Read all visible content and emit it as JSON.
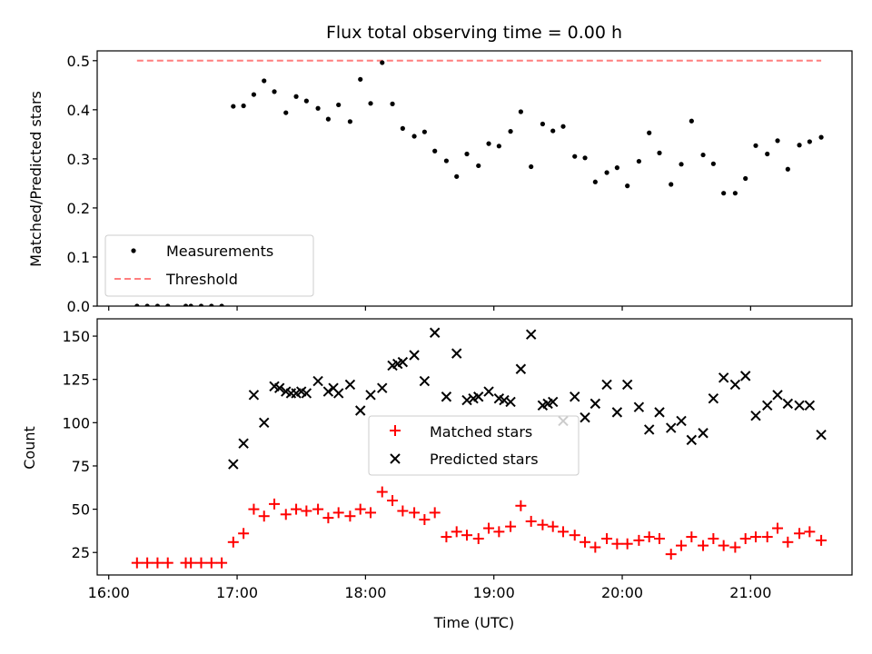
{
  "chart_data": [
    {
      "type": "scatter",
      "title": "Flux total observing time = 0.00 h",
      "ylabel": "Matched/Predicted stars",
      "xlabel": "",
      "ylim": [
        0,
        0.52
      ],
      "yticks": [
        0.0,
        0.1,
        0.2,
        0.3,
        0.4,
        0.5
      ],
      "ytick_labels": [
        "0.0",
        "0.1",
        "0.2",
        "0.3",
        "0.4",
        "0.5"
      ],
      "xlim": [
        15.91,
        21.79
      ],
      "xticks": [
        16,
        17,
        18,
        19,
        20,
        21
      ],
      "legend": {
        "placement": "lower-left",
        "entries": [
          "Measurements",
          "Threshold"
        ]
      },
      "colors": {
        "measurements": "#000000",
        "threshold": "#ff7f7f"
      },
      "threshold": {
        "name": "Threshold",
        "x": [
          16.22,
          21.55
        ],
        "y": 0.5
      },
      "series": [
        {
          "name": "Measurements",
          "x": [
            16.22,
            16.3,
            16.38,
            16.46,
            16.6,
            16.64,
            16.72,
            16.8,
            16.88,
            16.97,
            17.05,
            17.13,
            17.21,
            17.29,
            17.38,
            17.46,
            17.54,
            17.63,
            17.71,
            17.79,
            17.88,
            17.96,
            18.04,
            18.13,
            18.21,
            18.29,
            18.38,
            18.46,
            18.54,
            18.63,
            18.71,
            18.79,
            18.88,
            18.96,
            19.04,
            19.13,
            19.21,
            19.29,
            19.38,
            19.46,
            19.54,
            19.63,
            19.71,
            19.79,
            19.88,
            19.96,
            20.04,
            20.13,
            20.21,
            20.29,
            20.38,
            20.46,
            20.54,
            20.63,
            20.71,
            20.79,
            20.88,
            20.96,
            21.04,
            21.13,
            21.21,
            21.29,
            21.38,
            21.46,
            21.55
          ],
          "y": [
            0.0,
            0.0,
            0.0,
            0.0,
            0.0,
            0.0,
            0.0,
            0.0,
            0.0,
            0.407,
            0.408,
            0.431,
            0.459,
            0.437,
            0.394,
            0.427,
            0.418,
            0.403,
            0.381,
            0.41,
            0.376,
            0.462,
            0.413,
            0.496,
            0.412,
            0.362,
            0.346,
            0.355,
            0.316,
            0.296,
            0.264,
            0.31,
            0.286,
            0.331,
            0.326,
            0.356,
            0.396,
            0.284,
            0.371,
            0.357,
            0.366,
            0.305,
            0.302,
            0.253,
            0.272,
            0.282,
            0.245,
            0.295,
            0.353,
            0.312,
            0.248,
            0.289,
            0.377,
            0.308,
            0.29,
            0.23,
            0.23,
            0.26,
            0.327,
            0.31,
            0.337,
            0.279,
            0.328,
            0.335,
            0.344
          ]
        }
      ]
    },
    {
      "type": "scatter",
      "title": "",
      "xlabel": "Time (UTC)",
      "ylabel": "Count",
      "ylim": [
        12,
        160
      ],
      "yticks": [
        25,
        50,
        75,
        100,
        125,
        150
      ],
      "ytick_labels": [
        "25",
        "50",
        "75",
        "100",
        "125",
        "150"
      ],
      "xlim": [
        15.91,
        21.79
      ],
      "xticks": [
        16,
        17,
        18,
        19,
        20,
        21
      ],
      "xtick_labels": [
        "16:00",
        "17:00",
        "18:00",
        "19:00",
        "20:00",
        "21:00"
      ],
      "legend": {
        "placement": "center",
        "entries": [
          "Matched stars",
          "Predicted stars"
        ]
      },
      "colors": {
        "matched": "#ff0000",
        "predicted": "#000000"
      },
      "series": [
        {
          "name": "Matched stars",
          "marker": "plus",
          "x": [
            16.22,
            16.3,
            16.38,
            16.46,
            16.6,
            16.64,
            16.72,
            16.8,
            16.88,
            16.97,
            17.05,
            17.13,
            17.21,
            17.29,
            17.38,
            17.46,
            17.54,
            17.63,
            17.71,
            17.79,
            17.88,
            17.96,
            18.04,
            18.13,
            18.21,
            18.29,
            18.38,
            18.46,
            18.54,
            18.63,
            18.71,
            18.79,
            18.88,
            18.96,
            19.04,
            19.13,
            19.21,
            19.29,
            19.38,
            19.46,
            19.54,
            19.63,
            19.71,
            19.79,
            19.88,
            19.96,
            20.04,
            20.13,
            20.21,
            20.29,
            20.38,
            20.46,
            20.54,
            20.63,
            20.71,
            20.79,
            20.88,
            20.96,
            21.04,
            21.13,
            21.21,
            21.29,
            21.38,
            21.46,
            21.55
          ],
          "y": [
            19,
            19,
            19,
            19,
            19,
            19,
            19,
            19,
            19,
            31,
            36,
            50,
            46,
            53,
            47,
            50,
            49,
            50,
            45,
            48,
            46,
            50,
            48,
            60,
            55,
            49,
            48,
            44,
            48,
            34,
            37,
            35,
            33,
            39,
            37,
            40,
            52,
            43,
            41,
            40,
            37,
            35,
            31,
            28,
            33,
            30,
            30,
            32,
            34,
            33,
            24,
            29,
            34,
            29,
            33,
            29,
            28,
            33,
            34,
            34,
            39,
            31,
            36,
            37,
            32
          ]
        },
        {
          "name": "Predicted stars",
          "marker": "x",
          "x": [
            16.97,
            17.05,
            17.13,
            17.21,
            17.29,
            17.33,
            17.38,
            17.42,
            17.46,
            17.5,
            17.54,
            17.63,
            17.71,
            17.75,
            17.79,
            17.88,
            17.96,
            18.04,
            18.13,
            18.21,
            18.25,
            18.29,
            18.38,
            18.46,
            18.54,
            18.63,
            18.71,
            18.79,
            18.84,
            18.88,
            18.96,
            19.04,
            19.08,
            19.13,
            19.21,
            19.29,
            19.38,
            19.42,
            19.46,
            19.54,
            19.63,
            19.71,
            19.79,
            19.88,
            19.96,
            20.04,
            20.13,
            20.21,
            20.29,
            20.38,
            20.46,
            20.54,
            20.63,
            20.71,
            20.79,
            20.88,
            20.96,
            21.04,
            21.13,
            21.21,
            21.29,
            21.38,
            21.46,
            21.55
          ],
          "y": [
            76,
            88,
            116,
            100,
            121,
            120,
            118,
            117,
            117,
            118,
            117,
            124,
            118,
            120,
            117,
            122,
            107,
            116,
            120,
            133,
            134,
            135,
            139,
            124,
            152,
            115,
            140,
            113,
            114,
            115,
            118,
            114,
            113,
            112,
            131,
            151,
            110,
            111,
            112,
            101,
            115,
            103,
            111,
            122,
            106,
            122,
            109,
            96,
            106,
            97,
            101,
            90,
            94,
            114,
            126,
            122,
            127,
            104,
            110,
            116,
            111,
            110,
            110,
            93
          ]
        }
      ]
    }
  ]
}
